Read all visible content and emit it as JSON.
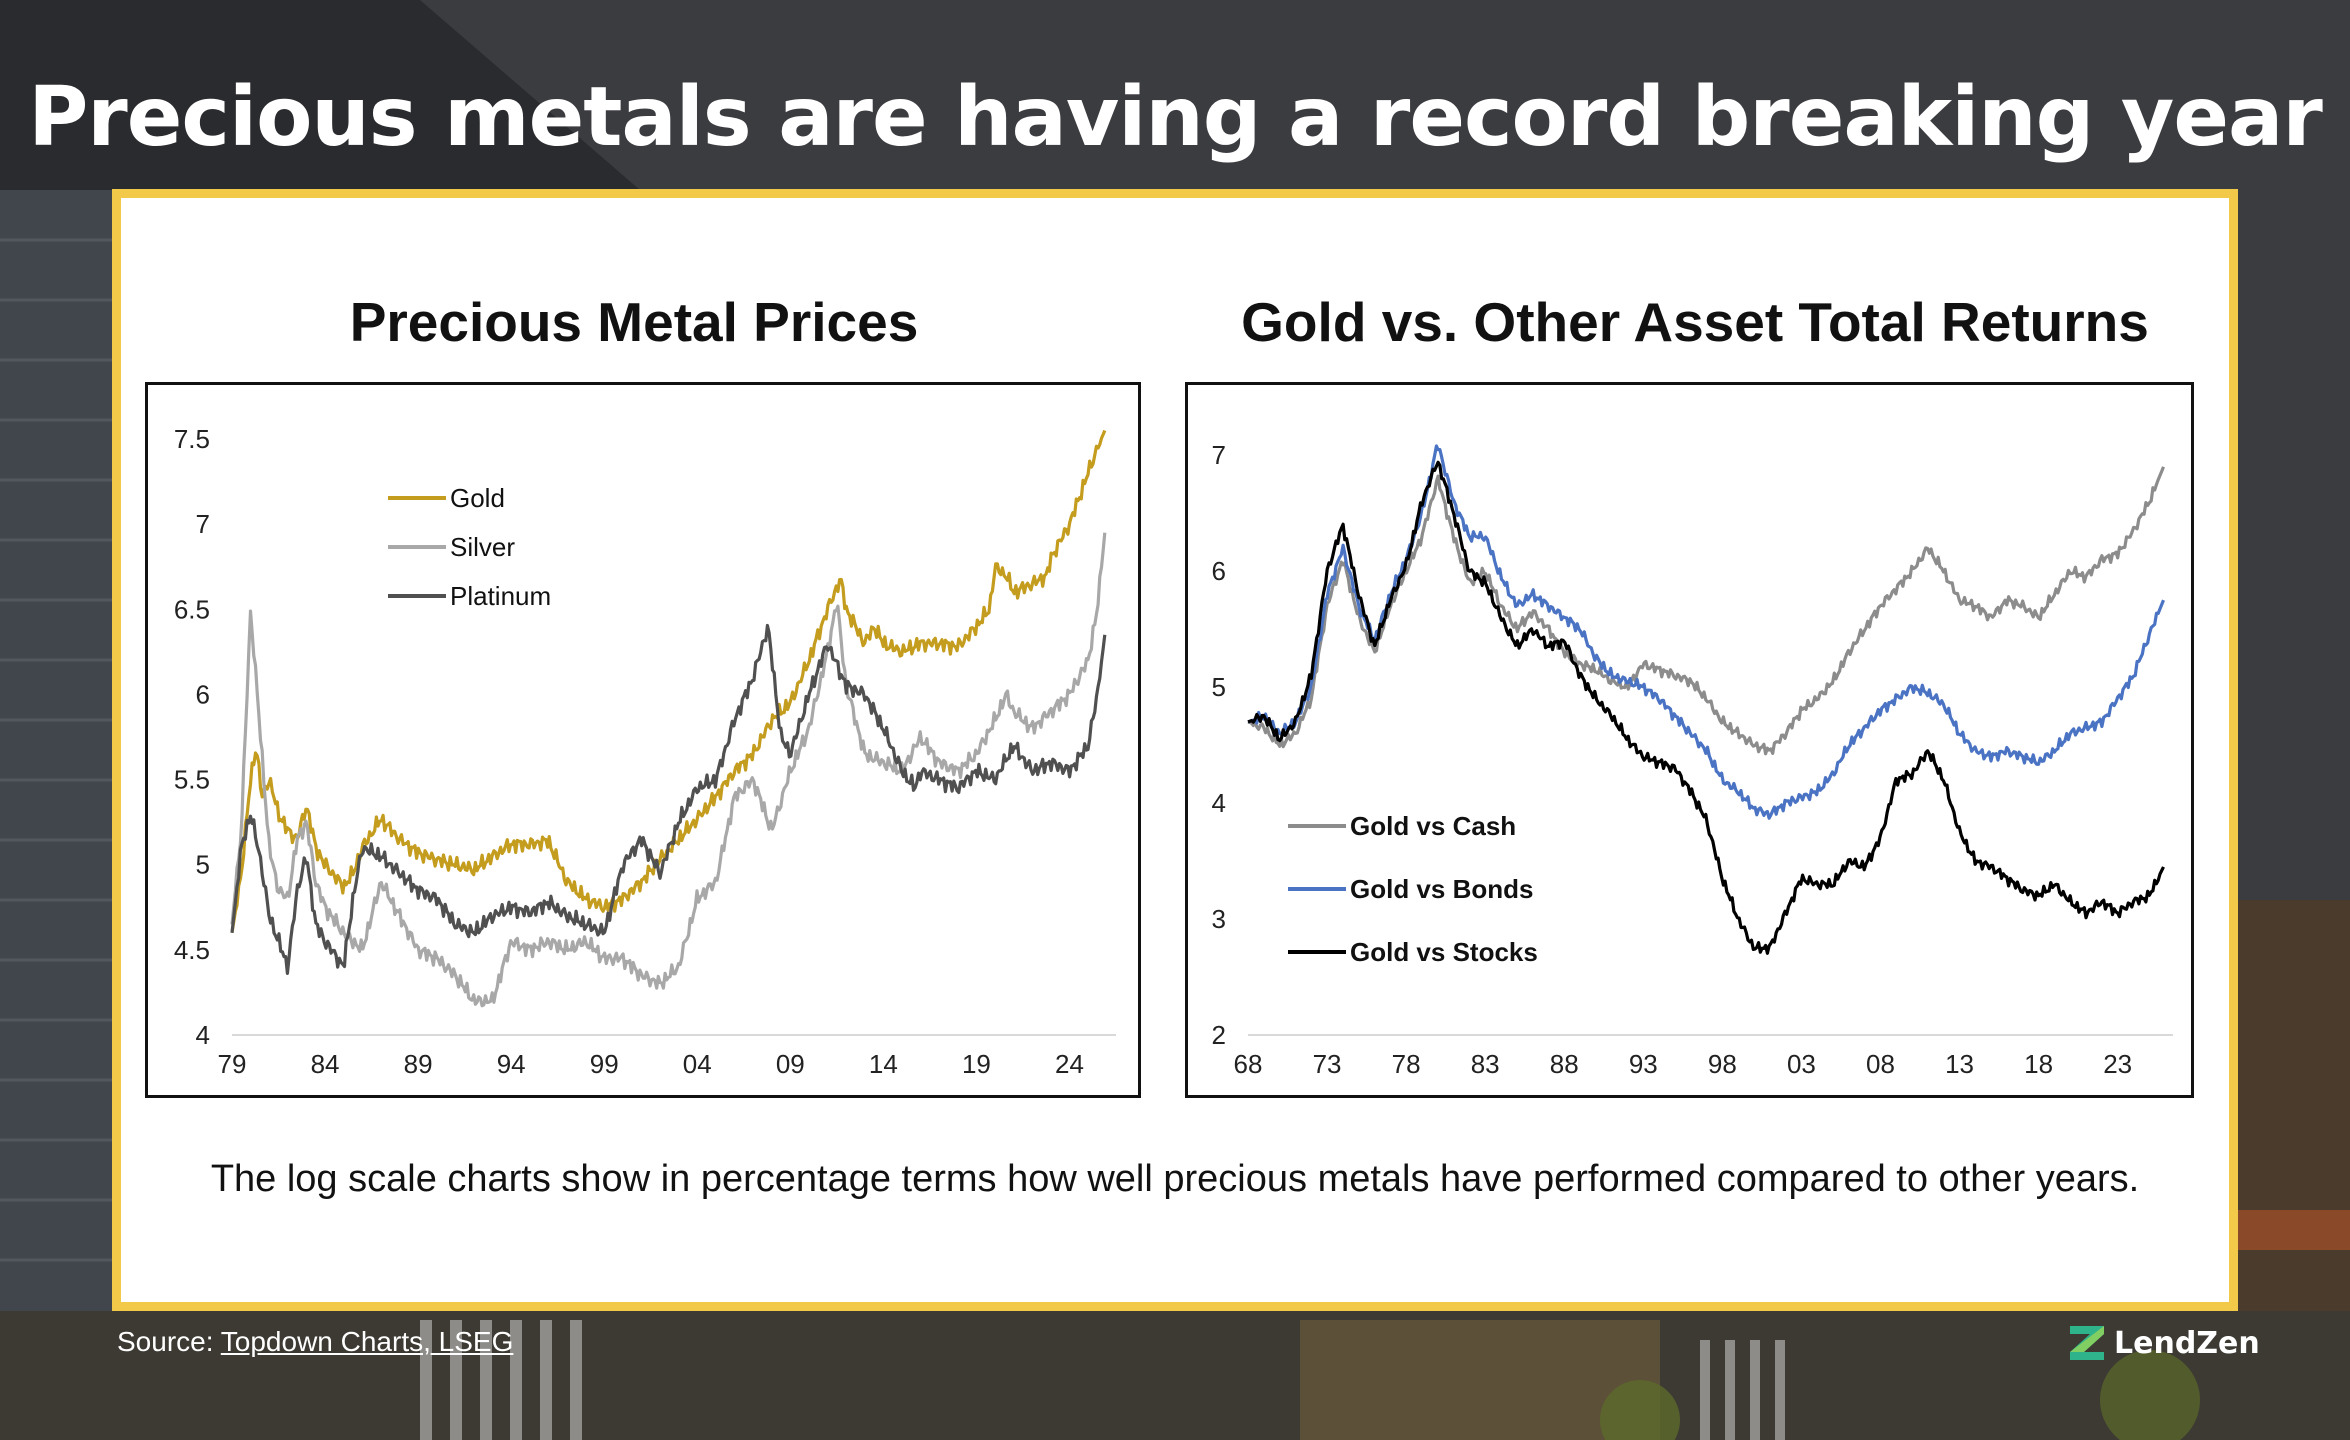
{
  "headline": "Precious metals are having a record breaking year",
  "caption": "The log scale charts show in percentage terms how well precious metals have performed compared to other years.",
  "source": {
    "prefix": "Source: ",
    "link_text": "Topdown Charts, LSEG"
  },
  "brand": {
    "name": "LendZen",
    "logo_icon": "lendzen-z-logo-icon",
    "accent": "#f3c94a"
  },
  "chart_data": [
    {
      "type": "line",
      "title": "Precious Metal Prices",
      "xlabel": "",
      "ylabel": "",
      "xlim": [
        1979,
        2026.5
      ],
      "ylim": [
        4,
        7.6
      ],
      "yticks": [
        4,
        4.5,
        5,
        5.5,
        6,
        6.5,
        7,
        7.5
      ],
      "ytick_labels": [
        "4",
        "4.5",
        "5",
        "5.5",
        "6",
        "6.5",
        "7",
        "7.5"
      ],
      "xticks": [
        1979,
        1984,
        1989,
        1994,
        1999,
        2004,
        2009,
        2014,
        2019,
        2024
      ],
      "xtick_labels": [
        "79",
        "84",
        "89",
        "94",
        "99",
        "04",
        "09",
        "14",
        "19",
        "24"
      ],
      "grid": false,
      "legend_position": "top-left",
      "series": [
        {
          "name": "Gold",
          "color": "#c49c1e",
          "x": [
            1979,
            1979.5,
            1980,
            1980.3,
            1980.6,
            1981,
            1981.5,
            1982,
            1982.5,
            1983,
            1983.5,
            1984,
            1985,
            1985.5,
            1986,
            1987,
            1988,
            1989,
            1990,
            1991,
            1992,
            1993,
            1994,
            1995,
            1996,
            1997,
            1998,
            1999,
            2000,
            2001,
            2002,
            2003,
            2004,
            2005,
            2006,
            2007,
            2008,
            2009,
            2010,
            2011,
            2011.7,
            2012,
            2013,
            2013.5,
            2014,
            2015,
            2016,
            2017,
            2018,
            2019,
            2019.7,
            2020,
            2020.6,
            2021,
            2022,
            2022.8,
            2023,
            2024,
            2025,
            2025.5,
            2025.9
          ],
          "values": [
            4.6,
            4.95,
            5.5,
            5.7,
            5.4,
            5.5,
            5.3,
            5.2,
            5.15,
            5.35,
            5.1,
            5.0,
            4.87,
            4.95,
            5.1,
            5.27,
            5.15,
            5.07,
            5.03,
            5.0,
            4.97,
            5.05,
            5.12,
            5.12,
            5.14,
            4.9,
            4.8,
            4.75,
            4.8,
            4.9,
            5.03,
            5.15,
            5.27,
            5.4,
            5.55,
            5.65,
            5.85,
            5.95,
            6.2,
            6.5,
            6.68,
            6.5,
            6.3,
            6.4,
            6.3,
            6.25,
            6.3,
            6.3,
            6.28,
            6.4,
            6.5,
            6.75,
            6.7,
            6.6,
            6.65,
            6.7,
            6.8,
            7.0,
            7.3,
            7.45,
            7.55
          ]
        },
        {
          "name": "Silver",
          "color": "#a8a8a8",
          "x": [
            1979,
            1979.5,
            1980,
            1980.5,
            1981,
            1981.5,
            1982,
            1982.5,
            1983,
            1983.5,
            1984,
            1985,
            1986,
            1987,
            1988,
            1989,
            1990,
            1991,
            1992,
            1993,
            1994,
            1995,
            1996,
            1997,
            1998,
            1999,
            2000,
            2001,
            2002,
            2003,
            2004,
            2005,
            2006,
            2007,
            2008,
            2009,
            2010,
            2011,
            2011.5,
            2012,
            2013,
            2014,
            2015,
            2016,
            2017,
            2018,
            2019,
            2020,
            2020.6,
            2021,
            2022,
            2023,
            2024,
            2025,
            2025.5,
            2025.9
          ],
          "values": [
            4.65,
            5.2,
            6.5,
            5.8,
            5.1,
            4.85,
            4.8,
            5.15,
            5.25,
            4.9,
            4.75,
            4.6,
            4.5,
            4.9,
            4.7,
            4.5,
            4.45,
            4.35,
            4.2,
            4.2,
            4.55,
            4.5,
            4.55,
            4.5,
            4.55,
            4.45,
            4.45,
            4.35,
            4.3,
            4.4,
            4.8,
            4.9,
            5.4,
            5.5,
            5.2,
            5.55,
            5.8,
            6.25,
            6.55,
            6.05,
            5.65,
            5.6,
            5.55,
            5.75,
            5.6,
            5.55,
            5.65,
            5.85,
            6.0,
            5.9,
            5.8,
            5.9,
            6.0,
            6.2,
            6.5,
            6.95
          ]
        },
        {
          "name": "Platinum",
          "color": "#505050",
          "x": [
            1979,
            1979.5,
            1980,
            1980.5,
            1981,
            1982,
            1982.5,
            1983,
            1983.5,
            1984,
            1985,
            1985.5,
            1986,
            1987,
            1988,
            1989,
            1990,
            1991,
            1992,
            1993,
            1994,
            1995,
            1996,
            1997,
            1998,
            1999,
            2000,
            2001,
            2002,
            2003,
            2004,
            2005,
            2006,
            2007,
            2007.8,
            2008.5,
            2009,
            2010,
            2011,
            2012,
            2013,
            2014,
            2015,
            2015.7,
            2016,
            2017,
            2018,
            2019,
            2020,
            2021,
            2022,
            2023,
            2024,
            2025,
            2025.5,
            2025.9
          ],
          "values": [
            4.6,
            5.1,
            5.3,
            5.05,
            4.7,
            4.4,
            4.85,
            5.05,
            4.65,
            4.55,
            4.4,
            4.8,
            5.1,
            5.05,
            4.95,
            4.85,
            4.8,
            4.65,
            4.6,
            4.7,
            4.75,
            4.72,
            4.78,
            4.7,
            4.65,
            4.6,
            5.0,
            5.15,
            4.95,
            5.25,
            5.45,
            5.5,
            5.85,
            6.1,
            6.4,
            5.75,
            5.65,
            6.0,
            6.3,
            6.05,
            6.0,
            5.8,
            5.55,
            5.45,
            5.55,
            5.5,
            5.45,
            5.55,
            5.5,
            5.7,
            5.55,
            5.6,
            5.55,
            5.7,
            6.0,
            6.35
          ]
        }
      ]
    },
    {
      "type": "line",
      "title": "Gold vs. Other Asset Total Returns",
      "xlabel": "",
      "ylabel": "",
      "xlim": [
        1968,
        2026.5
      ],
      "ylim": [
        2,
        7.2
      ],
      "yticks": [
        2,
        3,
        4,
        5,
        6,
        7
      ],
      "ytick_labels": [
        "2",
        "3",
        "4",
        "5",
        "6",
        "7"
      ],
      "xticks": [
        1968,
        1973,
        1978,
        1983,
        1988,
        1993,
        1998,
        2003,
        2008,
        2013,
        2018,
        2023
      ],
      "xtick_labels": [
        "68",
        "73",
        "78",
        "83",
        "88",
        "93",
        "98",
        "03",
        "08",
        "13",
        "18",
        "23"
      ],
      "grid": false,
      "legend_position": "bottom-left",
      "series": [
        {
          "name": "Gold vs Cash",
          "color": "#8c8c8c",
          "x": [
            1968,
            1969,
            1970,
            1971,
            1972,
            1973,
            1974,
            1975,
            1976,
            1977,
            1978,
            1979,
            1980,
            1981,
            1982,
            1983,
            1984,
            1985,
            1986,
            1987,
            1988,
            1989,
            1990,
            1991,
            1992,
            1993,
            1994,
            1995,
            1996,
            1997,
            1998,
            1999,
            2000,
            2001,
            2002,
            2003,
            2004,
            2005,
            2006,
            2007,
            2008,
            2009,
            2010,
            2011,
            2012,
            2013,
            2014,
            2015,
            2016,
            2017,
            2018,
            2019,
            2020,
            2021,
            2022,
            2023,
            2024,
            2025,
            2025.9
          ],
          "values": [
            4.7,
            4.65,
            4.5,
            4.6,
            4.9,
            5.7,
            6.1,
            5.6,
            5.3,
            5.7,
            6.0,
            6.3,
            6.8,
            6.3,
            5.9,
            6.0,
            5.7,
            5.5,
            5.65,
            5.5,
            5.3,
            5.2,
            5.15,
            5.05,
            5.0,
            5.2,
            5.15,
            5.1,
            5.05,
            4.9,
            4.7,
            4.6,
            4.5,
            4.45,
            4.6,
            4.8,
            4.9,
            5.05,
            5.3,
            5.5,
            5.7,
            5.85,
            6.0,
            6.2,
            6.0,
            5.75,
            5.7,
            5.6,
            5.75,
            5.7,
            5.6,
            5.8,
            6.0,
            5.95,
            6.1,
            6.15,
            6.35,
            6.6,
            6.9
          ]
        },
        {
          "name": "Gold vs Bonds",
          "color": "#4a73c4",
          "x": [
            1968,
            1969,
            1970,
            1971,
            1972,
            1973,
            1974,
            1975,
            1976,
            1977,
            1978,
            1979,
            1980,
            1981,
            1982,
            1983,
            1984,
            1985,
            1986,
            1987,
            1988,
            1989,
            1990,
            1991,
            1992,
            1993,
            1994,
            1995,
            1996,
            1997,
            1998,
            1999,
            2000,
            2001,
            2002,
            2003,
            2004,
            2005,
            2006,
            2007,
            2008,
            2009,
            2010,
            2011,
            2012,
            2013,
            2014,
            2015,
            2016,
            2017,
            2018,
            2019,
            2020,
            2021,
            2022,
            2023,
            2024,
            2025,
            2025.9
          ],
          "values": [
            4.7,
            4.75,
            4.6,
            4.7,
            5.0,
            5.8,
            6.2,
            5.7,
            5.4,
            5.8,
            6.1,
            6.5,
            7.1,
            6.6,
            6.3,
            6.3,
            5.95,
            5.7,
            5.8,
            5.7,
            5.6,
            5.5,
            5.25,
            5.1,
            5.05,
            5.0,
            4.9,
            4.75,
            4.6,
            4.45,
            4.2,
            4.1,
            3.95,
            3.9,
            4.0,
            4.05,
            4.1,
            4.25,
            4.5,
            4.65,
            4.8,
            4.9,
            5.0,
            4.95,
            4.85,
            4.6,
            4.45,
            4.4,
            4.45,
            4.4,
            4.35,
            4.45,
            4.6,
            4.65,
            4.7,
            4.9,
            5.1,
            5.45,
            5.75
          ]
        },
        {
          "name": "Gold vs Stocks",
          "color": "#000000",
          "x": [
            1968,
            1969,
            1970,
            1971,
            1972,
            1973,
            1974,
            1975,
            1976,
            1977,
            1978,
            1979,
            1980,
            1981,
            1982,
            1983,
            1984,
            1985,
            1986,
            1987,
            1988,
            1989,
            1990,
            1991,
            1992,
            1993,
            1994,
            1995,
            1996,
            1997,
            1998,
            1999,
            2000,
            2001,
            2002,
            2003,
            2004,
            2005,
            2006,
            2007,
            2008,
            2009,
            2010,
            2011,
            2012,
            2013,
            2014,
            2015,
            2016,
            2017,
            2018,
            2019,
            2020,
            2021,
            2022,
            2023,
            2024,
            2025,
            2025.9
          ],
          "values": [
            4.7,
            4.75,
            4.55,
            4.7,
            5.1,
            6.0,
            6.4,
            5.8,
            5.35,
            5.75,
            6.05,
            6.6,
            6.95,
            6.5,
            6.0,
            5.9,
            5.6,
            5.35,
            5.5,
            5.35,
            5.4,
            5.1,
            4.9,
            4.75,
            4.55,
            4.4,
            4.35,
            4.3,
            4.1,
            3.85,
            3.35,
            3.0,
            2.75,
            2.75,
            3.05,
            3.35,
            3.3,
            3.3,
            3.5,
            3.45,
            3.7,
            4.2,
            4.25,
            4.45,
            4.2,
            3.75,
            3.5,
            3.45,
            3.35,
            3.25,
            3.2,
            3.3,
            3.15,
            3.05,
            3.15,
            3.05,
            3.15,
            3.2,
            3.45
          ]
        }
      ]
    }
  ]
}
